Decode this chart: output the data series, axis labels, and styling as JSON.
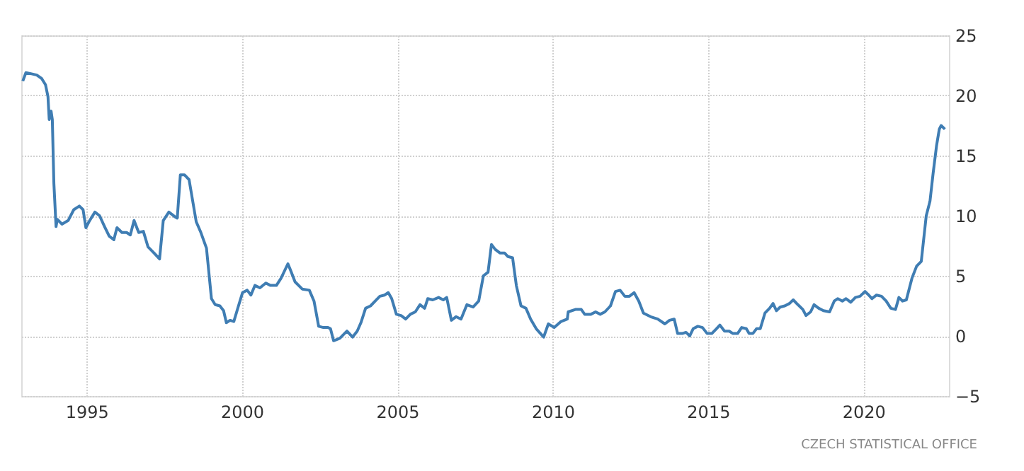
{
  "chart_data": {
    "type": "line",
    "x": [
      1992.95,
      1993.05,
      1993.23,
      1993.4,
      1993.56,
      1993.68,
      1993.76,
      1993.8,
      1993.86,
      1993.9,
      1993.95,
      1994.02,
      1994.06,
      1994.21,
      1994.41,
      1994.59,
      1994.77,
      1994.89,
      1994.98,
      1995.08,
      1995.27,
      1995.42,
      1995.58,
      1995.73,
      1995.88,
      1995.98,
      1996.14,
      1996.29,
      1996.41,
      1996.53,
      1996.68,
      1996.83,
      1996.98,
      1997.17,
      1997.35,
      1997.47,
      1997.65,
      1997.85,
      1997.92,
      1998.02,
      1998.15,
      1998.3,
      1998.53,
      1998.68,
      1998.86,
      1999.02,
      1999.14,
      1999.29,
      1999.41,
      1999.5,
      1999.62,
      1999.74,
      1999.89,
      2000.02,
      2000.17,
      2000.29,
      2000.42,
      2000.58,
      2000.77,
      2000.92,
      2001.11,
      2001.26,
      2001.48,
      2001.56,
      2001.71,
      2001.94,
      2002.17,
      2002.32,
      2002.47,
      2002.62,
      2002.77,
      2002.85,
      2002.95,
      2003.15,
      2003.38,
      2003.56,
      2003.71,
      2003.83,
      2003.98,
      2004.14,
      2004.29,
      2004.44,
      2004.59,
      2004.71,
      2004.82,
      2004.97,
      2005.12,
      2005.27,
      2005.42,
      2005.58,
      2005.73,
      2005.88,
      2005.98,
      2006.14,
      2006.33,
      2006.48,
      2006.59,
      2006.74,
      2006.89,
      2007.05,
      2007.24,
      2007.44,
      2007.62,
      2007.77,
      2007.92,
      2008.03,
      2008.15,
      2008.3,
      2008.45,
      2008.56,
      2008.71,
      2008.83,
      2008.98,
      2009.14,
      2009.29,
      2009.47,
      2009.71,
      2009.86,
      2010.05,
      2010.27,
      2010.47,
      2010.5,
      2010.73,
      2010.92,
      2011.03,
      2011.23,
      2011.38,
      2011.53,
      2011.68,
      2011.86,
      2012.02,
      2012.17,
      2012.32,
      2012.47,
      2012.62,
      2012.77,
      2012.92,
      2013.15,
      2013.38,
      2013.61,
      2013.76,
      2013.91,
      2014.02,
      2014.17,
      2014.29,
      2014.41,
      2014.52,
      2014.67,
      2014.82,
      2014.97,
      2015.12,
      2015.27,
      2015.38,
      2015.53,
      2015.68,
      2015.8,
      2015.95,
      2016.08,
      2016.23,
      2016.32,
      2016.44,
      2016.56,
      2016.68,
      2016.83,
      2016.98,
      2017.09,
      2017.2,
      2017.32,
      2017.47,
      2017.62,
      2017.74,
      2017.89,
      2018.05,
      2018.15,
      2018.3,
      2018.41,
      2018.56,
      2018.71,
      2018.91,
      2019.06,
      2019.17,
      2019.32,
      2019.44,
      2019.59,
      2019.74,
      2019.89,
      2020.05,
      2020.17,
      2020.27,
      2020.42,
      2020.58,
      2020.73,
      2020.88,
      2021.03,
      2021.14,
      2021.26,
      2021.38,
      2021.56,
      2021.71,
      2021.86,
      2022.02,
      2022.14,
      2022.24,
      2022.35,
      2022.44,
      2022.5,
      2022.62
    ],
    "series": [
      {
        "color": "#3f7db3",
        "values": [
          21.2,
          21.9,
          21.8,
          21.7,
          21.4,
          20.9,
          19.9,
          18.0,
          18.7,
          18.0,
          12.7,
          9.1,
          9.7,
          9.3,
          9.6,
          10.5,
          10.8,
          10.5,
          9.0,
          9.5,
          10.3,
          10.0,
          9.1,
          8.3,
          8.0,
          9.0,
          8.6,
          8.6,
          8.4,
          9.6,
          8.6,
          8.7,
          7.4,
          6.9,
          6.4,
          9.6,
          10.3,
          9.9,
          9.8,
          13.4,
          13.4,
          13.0,
          9.5,
          8.6,
          7.3,
          3.1,
          2.6,
          2.5,
          2.1,
          1.1,
          1.3,
          1.2,
          2.5,
          3.6,
          3.8,
          3.4,
          4.2,
          4.0,
          4.4,
          4.2,
          4.2,
          4.8,
          6.0,
          5.5,
          4.5,
          3.9,
          3.8,
          2.9,
          0.8,
          0.7,
          0.7,
          0.6,
          -0.4,
          -0.2,
          0.4,
          -0.1,
          0.4,
          1.1,
          2.3,
          2.5,
          2.9,
          3.3,
          3.4,
          3.6,
          3.1,
          1.8,
          1.7,
          1.4,
          1.8,
          2.0,
          2.6,
          2.3,
          3.1,
          3.0,
          3.2,
          3.0,
          3.2,
          1.3,
          1.6,
          1.4,
          2.6,
          2.4,
          2.9,
          5.0,
          5.3,
          7.6,
          7.2,
          6.9,
          6.9,
          6.6,
          6.5,
          4.2,
          2.5,
          2.3,
          1.4,
          0.6,
          -0.1,
          1.0,
          0.7,
          1.2,
          1.4,
          2.0,
          2.2,
          2.2,
          1.8,
          1.8,
          2.0,
          1.8,
          2.0,
          2.5,
          3.7,
          3.8,
          3.3,
          3.3,
          3.6,
          2.9,
          1.9,
          1.6,
          1.4,
          1.0,
          1.3,
          1.4,
          0.2,
          0.2,
          0.3,
          0.0,
          0.6,
          0.8,
          0.7,
          0.2,
          0.2,
          0.6,
          0.9,
          0.4,
          0.4,
          0.2,
          0.2,
          0.7,
          0.6,
          0.2,
          0.2,
          0.6,
          0.6,
          1.9,
          2.3,
          2.7,
          2.1,
          2.4,
          2.5,
          2.7,
          3.0,
          2.6,
          2.2,
          1.7,
          2.0,
          2.6,
          2.3,
          2.1,
          2.0,
          2.9,
          3.1,
          2.9,
          3.1,
          2.8,
          3.2,
          3.3,
          3.7,
          3.4,
          3.1,
          3.4,
          3.3,
          2.9,
          2.3,
          2.2,
          3.2,
          2.9,
          3.0,
          4.8,
          5.8,
          6.2,
          10.0,
          11.2,
          13.5,
          15.8,
          17.2,
          17.5,
          17.2
        ]
      }
    ],
    "xlim": [
      1992.9,
      2022.75
    ],
    "xticks": [
      1995,
      2000,
      2005,
      2010,
      2015,
      2020
    ],
    "ylim": [
      -5,
      25
    ],
    "yticks": [
      -5,
      0,
      5,
      10,
      15,
      20,
      25
    ],
    "grid": true,
    "annotations": [
      "CZECH STATISTICAL OFFICE"
    ]
  }
}
